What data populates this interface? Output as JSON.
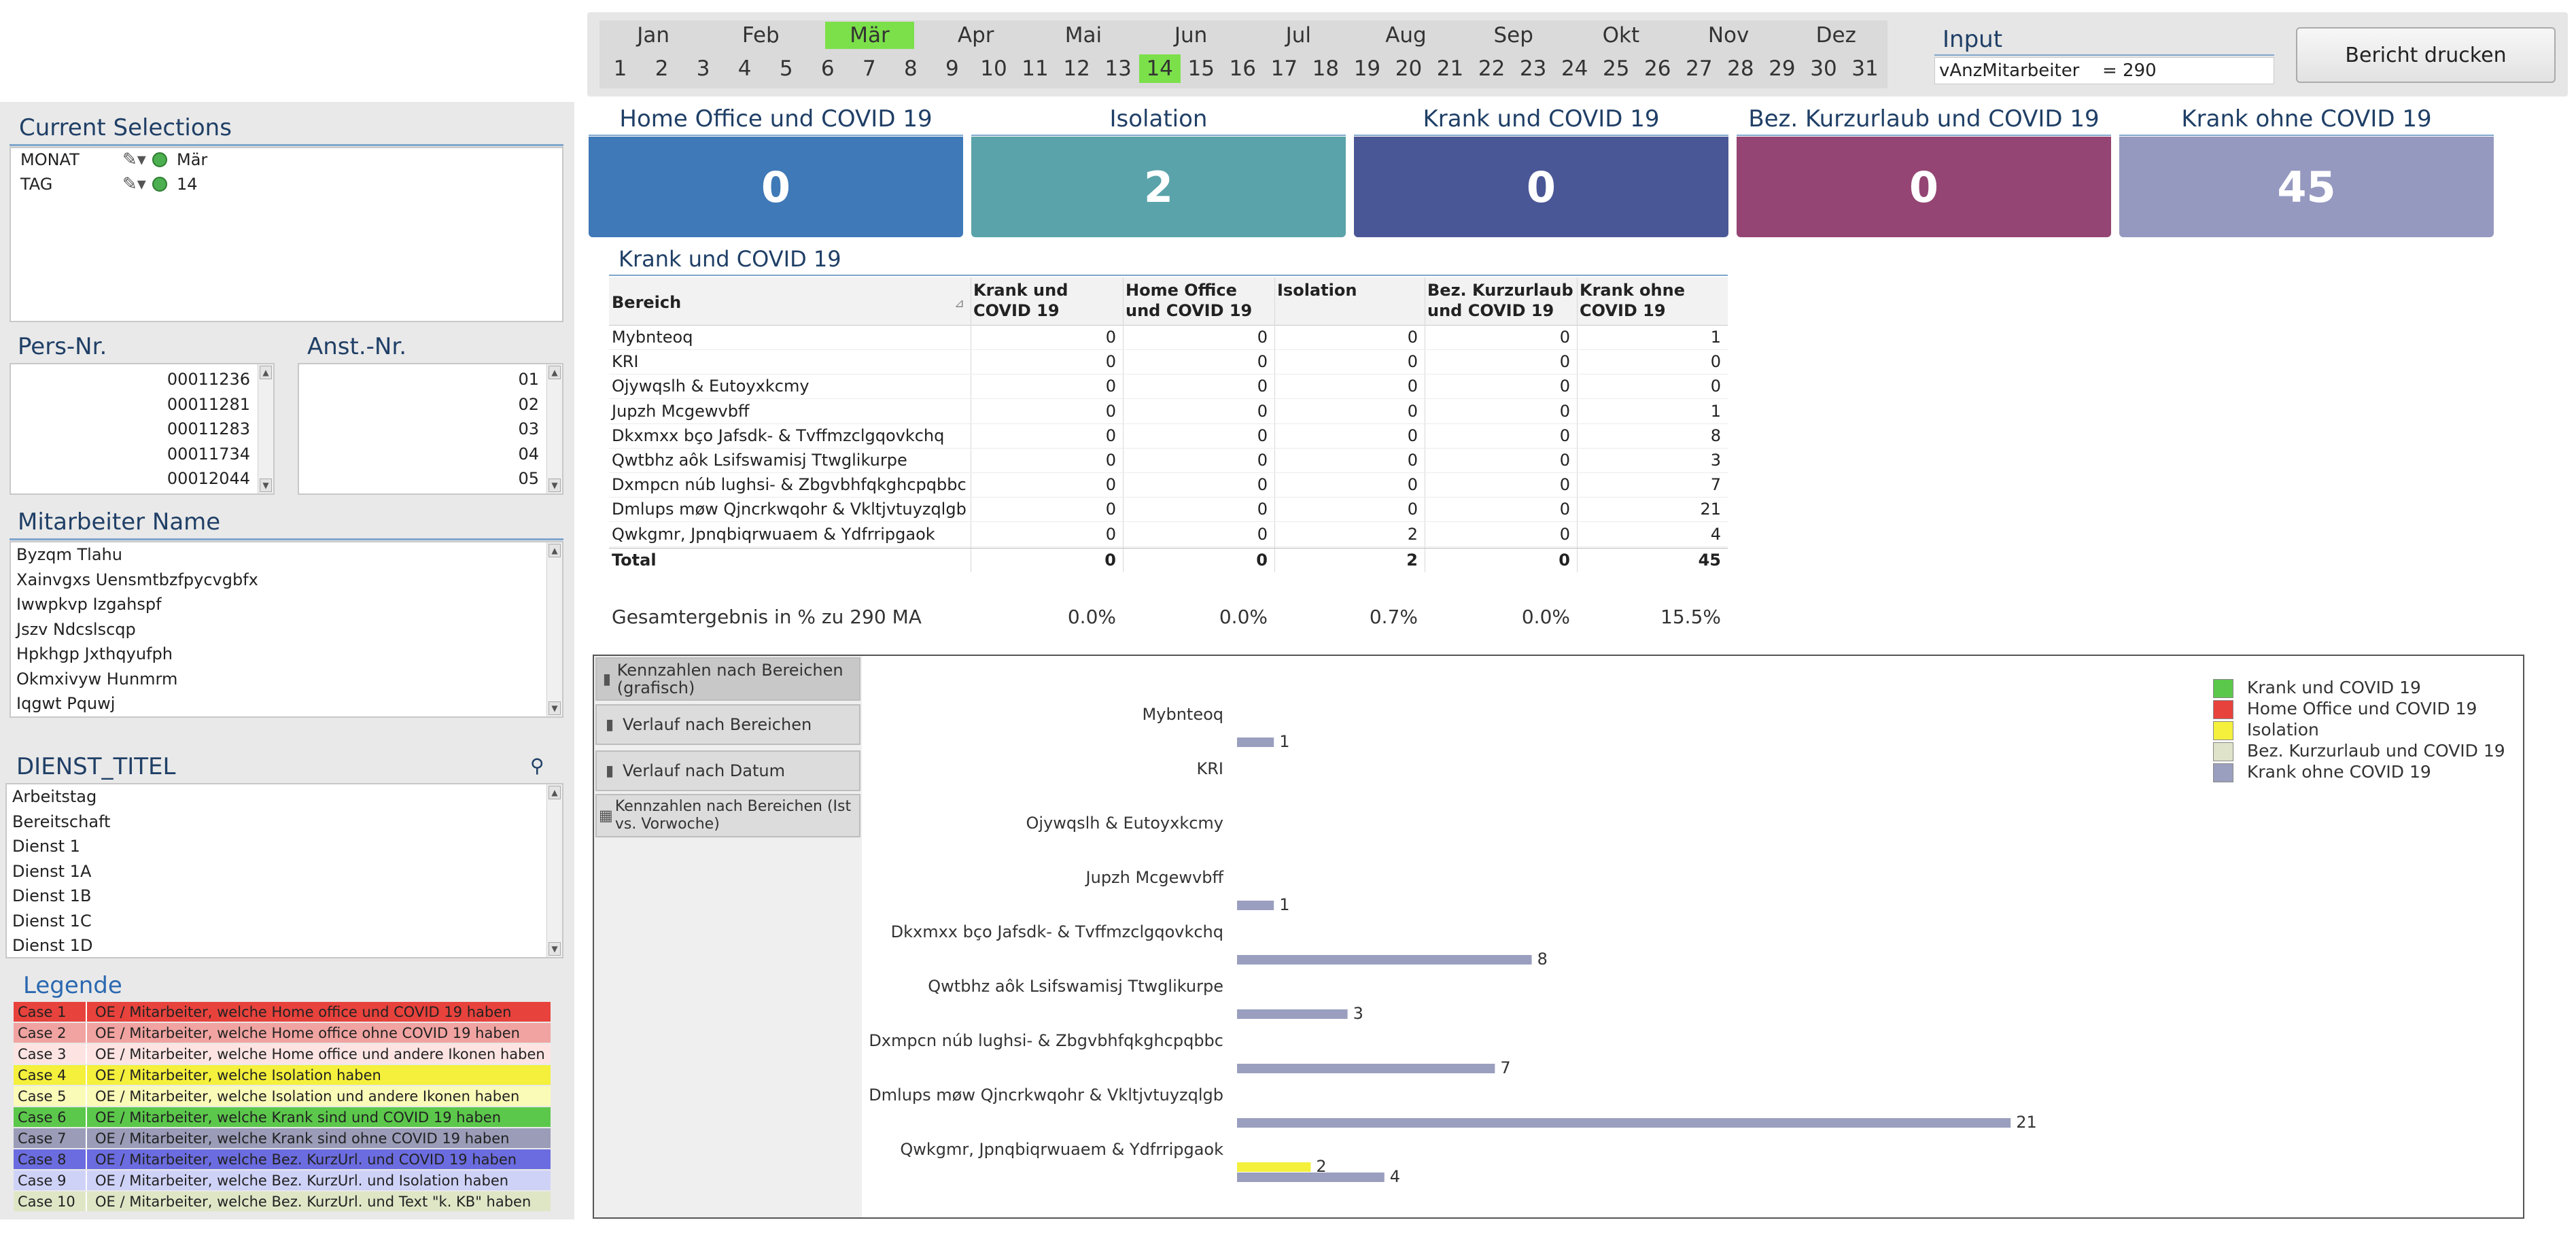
{
  "calendar": {
    "months": [
      "Jan",
      "Feb",
      "Mär",
      "Apr",
      "Mai",
      "Jun",
      "Jul",
      "Aug",
      "Sep",
      "Okt",
      "Nov",
      "Dez"
    ],
    "selected_month": "Mär",
    "days": [
      "1",
      "2",
      "3",
      "4",
      "5",
      "6",
      "7",
      "8",
      "9",
      "10",
      "11",
      "12",
      "13",
      "14",
      "15",
      "16",
      "17",
      "18",
      "19",
      "20",
      "21",
      "22",
      "23",
      "24",
      "25",
      "26",
      "27",
      "28",
      "29",
      "30",
      "31"
    ],
    "selected_day": "14",
    "highlight_color": "#7be04a"
  },
  "input": {
    "title": "Input",
    "var_name": "vAnzMitarbeiter",
    "var_value": "= 290"
  },
  "print_button": "Bericht drucken",
  "current_selections": {
    "title": "Current Selections",
    "rows": [
      {
        "field": "MONAT",
        "value": "Mär"
      },
      {
        "field": "TAG",
        "value": "14"
      }
    ]
  },
  "pers_nr": {
    "title": "Pers-Nr.",
    "items": [
      "00011236",
      "00011281",
      "00011283",
      "00011734",
      "00012044"
    ]
  },
  "anst_nr": {
    "title": "Anst.-Nr.",
    "items": [
      "01",
      "02",
      "03",
      "04",
      "05"
    ]
  },
  "mitarbeiter": {
    "title": "Mitarbeiter Name",
    "items": [
      "Byzqm Tlahu",
      "Xainvgxs Uensmtbzfpycvgbfx",
      "Iwwpkvp Izgahspf",
      "Jszv Ndcslscqp",
      "Hpkhgp Jxthqyufph",
      "Okmxivyw Hunmrm",
      "Iqgwt Pquwj"
    ]
  },
  "dienst": {
    "title": "DIENST_TITEL",
    "items": [
      "Arbeitstag",
      "Bereitschaft",
      "Dienst 1",
      "Dienst 1A",
      "Dienst 1B",
      "Dienst 1C",
      "Dienst 1D"
    ]
  },
  "legende": {
    "title": "Legende",
    "rows": [
      {
        "case": "Case 1",
        "text": "OE / Mitarbeiter, welche Home office und COVID 19 haben",
        "color": "#e8423c"
      },
      {
        "case": "Case 2",
        "text": "OE / Mitarbeiter, welche Home office ohne COVID 19 haben",
        "color": "#f0a3a0"
      },
      {
        "case": "Case 3",
        "text": "OE / Mitarbeiter, welche Home office und andere Ikonen haben",
        "color": "#fde4e3"
      },
      {
        "case": "Case 4",
        "text": "OE / Mitarbeiter, welche Isolation haben",
        "color": "#f4f03c"
      },
      {
        "case": "Case 5",
        "text": "OE / Mitarbeiter, welche Isolation und andere Ikonen haben",
        "color": "#fbfbb8"
      },
      {
        "case": "Case 6",
        "text": "OE / Mitarbeiter, welche Krank sind und COVID 19 haben",
        "color": "#5cc84b"
      },
      {
        "case": "Case 7",
        "text": "OE / Mitarbeiter, welche Krank sind ohne COVID 19 haben",
        "color": "#9a9cb8"
      },
      {
        "case": "Case 8",
        "text": "OE / Mitarbeiter, welche Bez. KurzUrl. und COVID 19 haben",
        "color": "#6b6cdf"
      },
      {
        "case": "Case 9",
        "text": "OE / Mitarbeiter, welche Bez. KurzUrl. und Isolation haben",
        "color": "#cfd2f7"
      },
      {
        "case": "Case 10",
        "text": "OE / Mitarbeiter, welche Bez. KurzUrl. und Text \"k. KB\" haben",
        "color": "#dfe6c6"
      }
    ]
  },
  "kpis": [
    {
      "title": "Home Office und COVID 19",
      "value": "0",
      "color": "#3f79b7"
    },
    {
      "title": "Isolation",
      "value": "2",
      "color": "#5aa3aa"
    },
    {
      "title": "Krank und COVID 19",
      "value": "0",
      "color": "#4a5796"
    },
    {
      "title": "Bez. Kurzurlaub und COVID 19",
      "value": "0",
      "color": "#944573"
    },
    {
      "title": "Krank ohne COVID 19",
      "value": "45",
      "color": "#9599c0"
    }
  ],
  "table": {
    "title": "Krank und COVID 19",
    "columns": [
      "Bereich",
      "Krank und COVID 19",
      "Home Office und COVID 19",
      "Isolation",
      "Bez. Kurzurlaub und COVID 19",
      "Krank ohne COVID 19"
    ],
    "rows": [
      [
        "Mybnteoq",
        "0",
        "0",
        "0",
        "0",
        "1"
      ],
      [
        "KRI",
        "0",
        "0",
        "0",
        "0",
        "0"
      ],
      [
        "Ojywqslh & Eutoyxkcmy",
        "0",
        "0",
        "0",
        "0",
        "0"
      ],
      [
        "Jupzh Mcgewvbff",
        "0",
        "0",
        "0",
        "0",
        "1"
      ],
      [
        "Dkxmxx bço Jafsdk- & Tvffmzclgqovkchq",
        "0",
        "0",
        "0",
        "0",
        "8"
      ],
      [
        "Qwtbhz aôk Lsifswamisj Ttwglikurpe",
        "0",
        "0",
        "0",
        "0",
        "3"
      ],
      [
        "Dxmpcn núb lughsi- & Zbgvbhfqkghcpqbbc",
        "0",
        "0",
        "0",
        "0",
        "7"
      ],
      [
        "Dmlups møw Qjncrkwqohr & Vkltjvtuyzqlgb",
        "0",
        "0",
        "0",
        "0",
        "21"
      ],
      [
        "Qwkgmr, Jpnqbiqrwuaem & Ydfrripgaok",
        "0",
        "0",
        "2",
        "0",
        "4"
      ]
    ],
    "total": [
      "Total",
      "0",
      "0",
      "2",
      "0",
      "45"
    ],
    "percent_row": [
      "Gesamtergebnis in % zu 290 MA",
      "0.0%",
      "0.0%",
      "0.7%",
      "0.0%",
      "15.5%"
    ]
  },
  "chart_tabs": [
    "Kennzahlen nach Bereichen (grafisch)",
    "Verlauf nach Bereichen",
    "Verlauf nach Datum",
    "Kennzahlen nach Bereichen (Ist vs. Vorwoche)"
  ],
  "chart_data": {
    "type": "bar",
    "orientation": "horizontal",
    "categories": [
      "Mybnteoq",
      "KRI",
      "Ojywqslh & Eutoyxkcmy",
      "Jupzh Mcgewvbff",
      "Dkxmxx bço Jafsdk- & Tvffmzclgqovkchq",
      "Qwtbhz aôk Lsifswamisj Ttwglikurpe",
      "Dxmpcn núb lughsi- & Zbgvbhfqkghcpqbbc",
      "Dmlups møw Qjncrkwqohr & Vkltjvtuyzqlgb",
      "Qwkgmr, Jpnqbiqrwuaem & Ydfrripgaok"
    ],
    "series": [
      {
        "name": "Krank und COVID 19",
        "color": "#5cc84b",
        "values": [
          0,
          0,
          0,
          0,
          0,
          0,
          0,
          0,
          0
        ]
      },
      {
        "name": "Home Office und COVID 19",
        "color": "#e8423c",
        "values": [
          0,
          0,
          0,
          0,
          0,
          0,
          0,
          0,
          0
        ]
      },
      {
        "name": "Isolation",
        "color": "#f4f03c",
        "values": [
          0,
          0,
          0,
          0,
          0,
          0,
          0,
          0,
          2
        ]
      },
      {
        "name": "Bez. Kurzurlaub und COVID 19",
        "color": "#dfe3c9",
        "values": [
          0,
          0,
          0,
          0,
          0,
          0,
          0,
          0,
          0
        ]
      },
      {
        "name": "Krank ohne COVID 19",
        "color": "#9a9fbf",
        "values": [
          1,
          0,
          0,
          1,
          8,
          3,
          7,
          21,
          4
        ]
      }
    ],
    "legend_position": "top-right",
    "grid": false
  }
}
